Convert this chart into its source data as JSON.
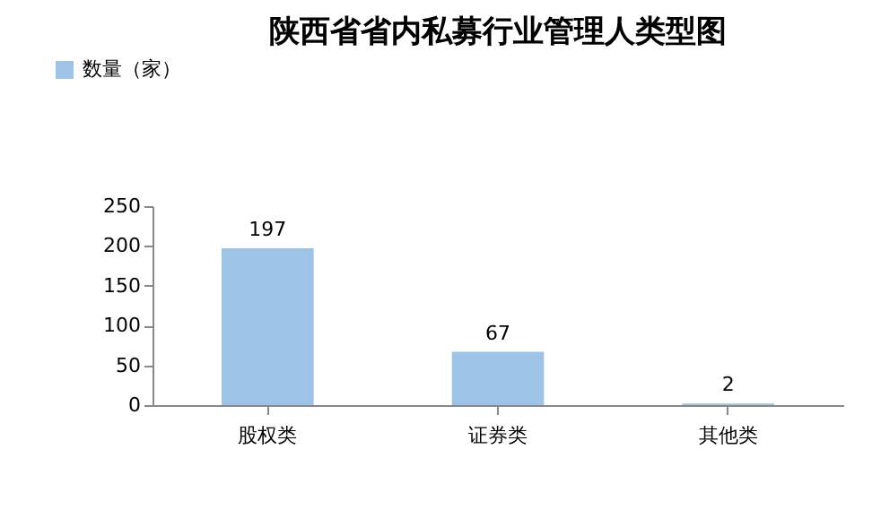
{
  "chart_data": {
    "type": "bar",
    "title": "陕西省省内私募行业管理人类型图",
    "categories": [
      "股权类",
      "证券类",
      "其他类"
    ],
    "series": [
      {
        "name": "数量（家）",
        "color": "#9dc3e6",
        "values": [
          197,
          67,
          2
        ]
      }
    ],
    "ylim": [
      0,
      250
    ],
    "yticks": [
      0,
      50,
      100,
      150,
      200,
      250
    ],
    "grid": false,
    "legend": "top left",
    "data_labels": true
  }
}
